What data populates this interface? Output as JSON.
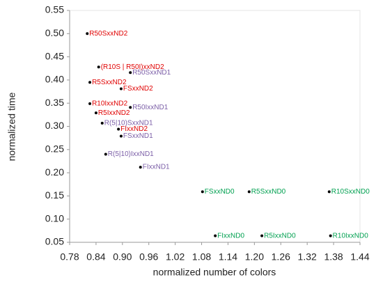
{
  "chart_data": {
    "type": "scatter",
    "x_label": "normalized number of colors",
    "y_label": "normalized time",
    "xlim": [
      0.78,
      1.44
    ],
    "ylim": [
      0.05,
      0.55
    ],
    "xticks": [
      0.78,
      0.84,
      {
        "value": 0.9,
        "label": "0.90"
      },
      0.96,
      1.02,
      1.08,
      1.14,
      {
        "value": 1.2,
        "label": "1.20"
      },
      1.26,
      1.32,
      1.38,
      1.44
    ],
    "yticks": [
      0.05,
      {
        "value": 0.1,
        "label": "0.10"
      },
      0.15,
      {
        "value": 0.2,
        "label": "0.20"
      },
      0.25,
      {
        "value": 0.3,
        "label": "0.30"
      },
      0.35,
      {
        "value": 0.4,
        "label": "0.40"
      },
      0.45,
      {
        "value": 0.5,
        "label": "0.50"
      },
      0.55
    ],
    "grid": false,
    "marker_color": "#000000",
    "series": [
      {
        "color": "#e00000",
        "labels": [
          "R50SxxND2",
          "(R10S | R50I)xxND2",
          "R5SxxND2",
          "FSxxND2",
          "R10IxxND2",
          "R5IxxND2",
          "FIxxND2"
        ],
        "x": [
          0.82,
          0.846,
          0.826,
          0.897,
          0.826,
          0.84,
          0.891
        ],
        "values": [
          0.5,
          0.428,
          0.395,
          0.381,
          0.349,
          0.329,
          0.294
        ]
      },
      {
        "color": "#7b5ea7",
        "labels": [
          "R50SxxND1",
          "R50IxxND1",
          "R(5|10)SxxND1",
          "FSxxND1",
          "R(5|10)IxxND1",
          "FIxxND1"
        ],
        "x": [
          0.918,
          0.918,
          0.854,
          0.897,
          0.862,
          0.941
        ],
        "values": [
          0.416,
          0.341,
          0.307,
          0.279,
          0.24,
          0.212
        ]
      },
      {
        "color": "#00a050",
        "labels": [
          "FSxxND0",
          "R5SxxND0",
          "R10SxxND0",
          "FIxxND0",
          "R5IxxND0",
          "R10IxxND0"
        ],
        "x": [
          1.082,
          1.188,
          1.37,
          1.111,
          1.217,
          1.373
        ],
        "values": [
          0.159,
          0.159,
          0.159,
          0.064,
          0.064,
          0.064
        ]
      }
    ]
  }
}
